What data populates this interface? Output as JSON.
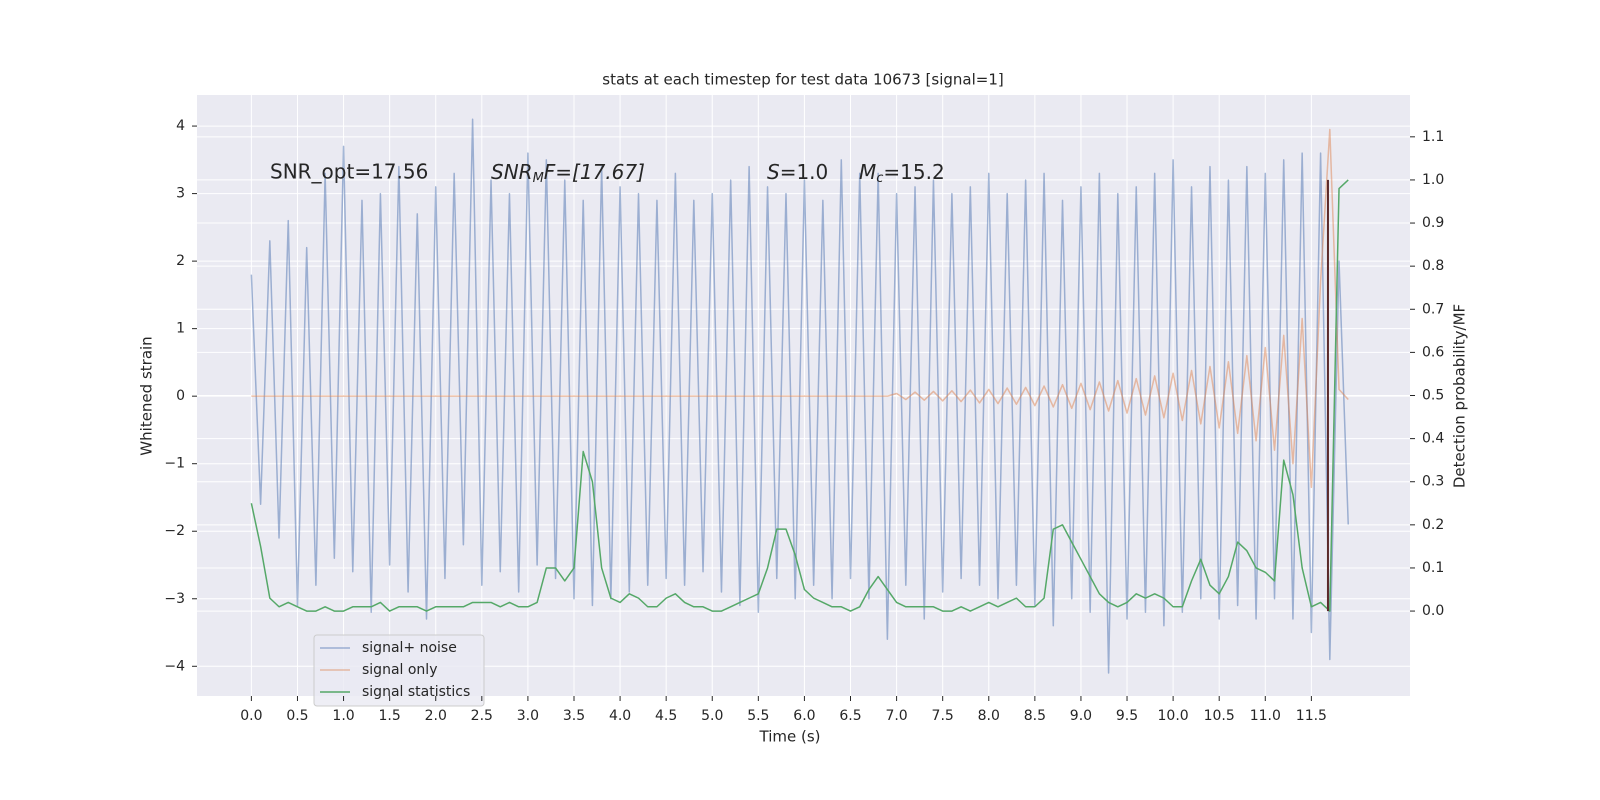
{
  "chart_data": {
    "type": "line",
    "title": "stats at each timestep for test data 10673 [signal=1]",
    "xlabel": "Time (s)",
    "ylabel": "Whitened strain",
    "y2label": "Detection probability/MF",
    "annotations": [
      "SNR_opt=17.56",
      [
        "SNR",
        "M",
        "F=[17.67]"
      ],
      [
        "S",
        "=1.0"
      ],
      [
        "M",
        "c",
        "=15.2"
      ]
    ],
    "x": [
      0.0,
      0.1,
      0.2,
      0.3,
      0.4,
      0.5,
      0.6,
      0.7,
      0.8,
      0.9,
      1.0,
      1.1,
      1.2,
      1.3,
      1.4,
      1.5,
      1.6,
      1.7,
      1.8,
      1.9,
      2.0,
      2.1,
      2.2,
      2.3,
      2.4,
      2.5,
      2.6,
      2.7,
      2.8,
      2.9,
      3.0,
      3.1,
      3.2,
      3.3,
      3.4,
      3.5,
      3.6,
      3.7,
      3.8,
      3.9,
      4.0,
      4.1,
      4.2,
      4.3,
      4.4,
      4.5,
      4.6,
      4.7,
      4.8,
      4.9,
      5.0,
      5.1,
      5.2,
      5.3,
      5.4,
      5.5,
      5.6,
      5.7,
      5.8,
      5.9,
      6.0,
      6.1,
      6.2,
      6.3,
      6.4,
      6.5,
      6.6,
      6.7,
      6.8,
      6.9,
      7.0,
      7.1,
      7.2,
      7.3,
      7.4,
      7.5,
      7.6,
      7.7,
      7.8,
      7.9,
      8.0,
      8.1,
      8.2,
      8.3,
      8.4,
      8.5,
      8.6,
      8.7,
      8.8,
      8.9,
      9.0,
      9.1,
      9.2,
      9.3,
      9.4,
      9.5,
      9.6,
      9.7,
      9.8,
      9.9,
      10.0,
      10.1,
      10.2,
      10.3,
      10.4,
      10.5,
      10.6,
      10.7,
      10.8,
      10.9,
      11.0,
      11.1,
      11.2,
      11.3,
      11.4,
      11.5,
      11.6,
      11.7,
      11.8,
      11.9
    ],
    "series": [
      {
        "name": "signal+ noise",
        "color": "#4c72b0",
        "opacity": 0.5,
        "values": [
          1.8,
          -1.6,
          2.3,
          -2.1,
          2.6,
          -3.1,
          2.2,
          -2.8,
          3.3,
          -2.4,
          3.7,
          -2.6,
          2.9,
          -3.2,
          3.0,
          -2.5,
          3.4,
          -2.9,
          2.7,
          -3.3,
          3.1,
          -2.7,
          3.3,
          -2.2,
          4.1,
          -2.8,
          3.2,
          -2.6,
          3.0,
          -2.9,
          3.6,
          -2.5,
          3.5,
          -2.7,
          3.2,
          -3.0,
          2.9,
          -3.1,
          3.4,
          -3.0,
          3.1,
          -2.9,
          3.0,
          -2.8,
          2.9,
          -2.7,
          3.3,
          -2.8,
          2.9,
          -2.6,
          3.0,
          -2.9,
          3.2,
          -3.1,
          3.4,
          -3.2,
          3.1,
          -2.7,
          3.0,
          -3.0,
          3.2,
          -2.8,
          2.9,
          -3.0,
          3.5,
          -2.7,
          3.3,
          -3.0,
          3.3,
          -3.6,
          3.0,
          -2.8,
          3.1,
          -3.3,
          3.2,
          -2.9,
          3.0,
          -2.7,
          3.1,
          -2.8,
          3.3,
          -3.0,
          3.0,
          -2.8,
          3.2,
          -3.1,
          3.3,
          -3.4,
          2.9,
          -3.0,
          3.1,
          -3.2,
          3.3,
          -4.1,
          3.0,
          -3.3,
          3.1,
          -3.2,
          3.3,
          -3.4,
          3.5,
          -3.2,
          3.1,
          -3.0,
          3.4,
          -3.3,
          3.2,
          -3.1,
          3.4,
          -3.3,
          3.3,
          -3.0,
          3.5,
          -3.3,
          3.6,
          -3.5,
          3.6,
          -3.9,
          2.0,
          -1.9
        ]
      },
      {
        "name": "signal only",
        "color": "#dd8452",
        "opacity": 0.5,
        "values": [
          0,
          0,
          0,
          0,
          0,
          0,
          0,
          0,
          0,
          0,
          0,
          0,
          0,
          0,
          0,
          0,
          0,
          0,
          0,
          0,
          0,
          0,
          0,
          0,
          0,
          0,
          0,
          0,
          0,
          0,
          0,
          0,
          0,
          0,
          0,
          0,
          0,
          0,
          0,
          0,
          0,
          0,
          0,
          0,
          0,
          0,
          0,
          0,
          0,
          0,
          0,
          0,
          0,
          0,
          0,
          0,
          0,
          0,
          0,
          0,
          0,
          0,
          0,
          0,
          0,
          0,
          0,
          0,
          0,
          0,
          0.04,
          -0.05,
          0.06,
          -0.06,
          0.07,
          -0.07,
          0.08,
          -0.08,
          0.09,
          -0.1,
          0.1,
          -0.11,
          0.12,
          -0.12,
          0.13,
          -0.14,
          0.15,
          -0.16,
          0.17,
          -0.18,
          0.19,
          -0.2,
          0.21,
          -0.22,
          0.23,
          -0.25,
          0.26,
          -0.28,
          0.3,
          -0.32,
          0.34,
          -0.36,
          0.38,
          -0.41,
          0.44,
          -0.47,
          0.51,
          -0.55,
          0.6,
          -0.66,
          0.72,
          -0.8,
          0.9,
          -1.0,
          1.15,
          -1.35,
          1.7,
          3.95,
          0.1,
          -0.05
        ]
      },
      {
        "name": "signal statistics",
        "color": "#55a868",
        "opacity": 1,
        "axis": "y2",
        "values": [
          0.25,
          0.15,
          0.03,
          0.01,
          0.02,
          0.01,
          0,
          0,
          0.01,
          0.0,
          0.0,
          0.01,
          0.01,
          0.01,
          0.02,
          0.0,
          0.01,
          0.01,
          0.01,
          0.0,
          0.01,
          0.01,
          0.01,
          0.01,
          0.02,
          0.02,
          0.02,
          0.01,
          0.02,
          0.01,
          0.01,
          0.02,
          0.1,
          0.1,
          0.07,
          0.1,
          0.37,
          0.3,
          0.1,
          0.03,
          0.02,
          0.04,
          0.03,
          0.01,
          0.01,
          0.03,
          0.04,
          0.02,
          0.01,
          0.01,
          0.0,
          0.0,
          0.01,
          0.02,
          0.03,
          0.04,
          0.1,
          0.19,
          0.19,
          0.13,
          0.05,
          0.03,
          0.02,
          0.01,
          0.01,
          0.0,
          0.01,
          0.05,
          0.08,
          0.05,
          0.02,
          0.01,
          0.01,
          0.01,
          0.01,
          0.0,
          0.0,
          0.01,
          0.0,
          0.01,
          0.02,
          0.01,
          0.02,
          0.03,
          0.01,
          0.01,
          0.03,
          0.19,
          0.2,
          0.16,
          0.12,
          0.08,
          0.04,
          0.02,
          0.01,
          0.02,
          0.04,
          0.03,
          0.04,
          0.03,
          0.01,
          0.01,
          0.07,
          0.12,
          0.06,
          0.04,
          0.08,
          0.16,
          0.14,
          0.1,
          0.09,
          0.07,
          0.35,
          0.27,
          0.1,
          0.01,
          0.02,
          0.0,
          0.98,
          1.0
        ]
      }
    ],
    "vlines": [
      {
        "x": 11.68,
        "ymin": 0,
        "ymax": 1.0,
        "axis": "y2",
        "color": "#5b2a2a"
      }
    ],
    "xlim": [
      -0.59,
      12.57
    ],
    "ylim": [
      -4.44,
      4.46
    ],
    "y2lim": [
      -0.197,
      1.197
    ],
    "xticks": [
      {
        "value": 0,
        "label": "0.0"
      },
      0.5,
      {
        "value": 1,
        "label": "1.0"
      },
      1.5,
      {
        "value": 2,
        "label": "2.0"
      },
      2.5,
      {
        "value": 3,
        "label": "3.0"
      },
      3.5,
      {
        "value": 4,
        "label": "4.0"
      },
      4.5,
      {
        "value": 5,
        "label": "5.0"
      },
      5.5,
      {
        "value": 6,
        "label": "6.0"
      },
      6.5,
      {
        "value": 7,
        "label": "7.0"
      },
      7.5,
      {
        "value": 8,
        "label": "8.0"
      },
      8.5,
      {
        "value": 9,
        "label": "9.0"
      },
      9.5,
      {
        "value": 10,
        "label": "10.0"
      },
      10.5,
      {
        "value": 11,
        "label": "11.0"
      },
      11.5
    ],
    "yticks": [
      {
        "value": -4,
        "label": "−4"
      },
      {
        "value": -3,
        "label": "−3"
      },
      {
        "value": -2,
        "label": "−2"
      },
      {
        "value": -1,
        "label": "−1"
      },
      0,
      1,
      2,
      3,
      4
    ],
    "y2ticks": [
      {
        "value": 0,
        "label": "0.0"
      },
      0.1,
      0.2,
      0.3,
      0.4,
      0.5,
      0.6,
      0.7,
      0.8,
      0.9,
      {
        "value": 1,
        "label": "1.0"
      },
      1.1
    ],
    "grid": true,
    "legend": "lower left"
  }
}
